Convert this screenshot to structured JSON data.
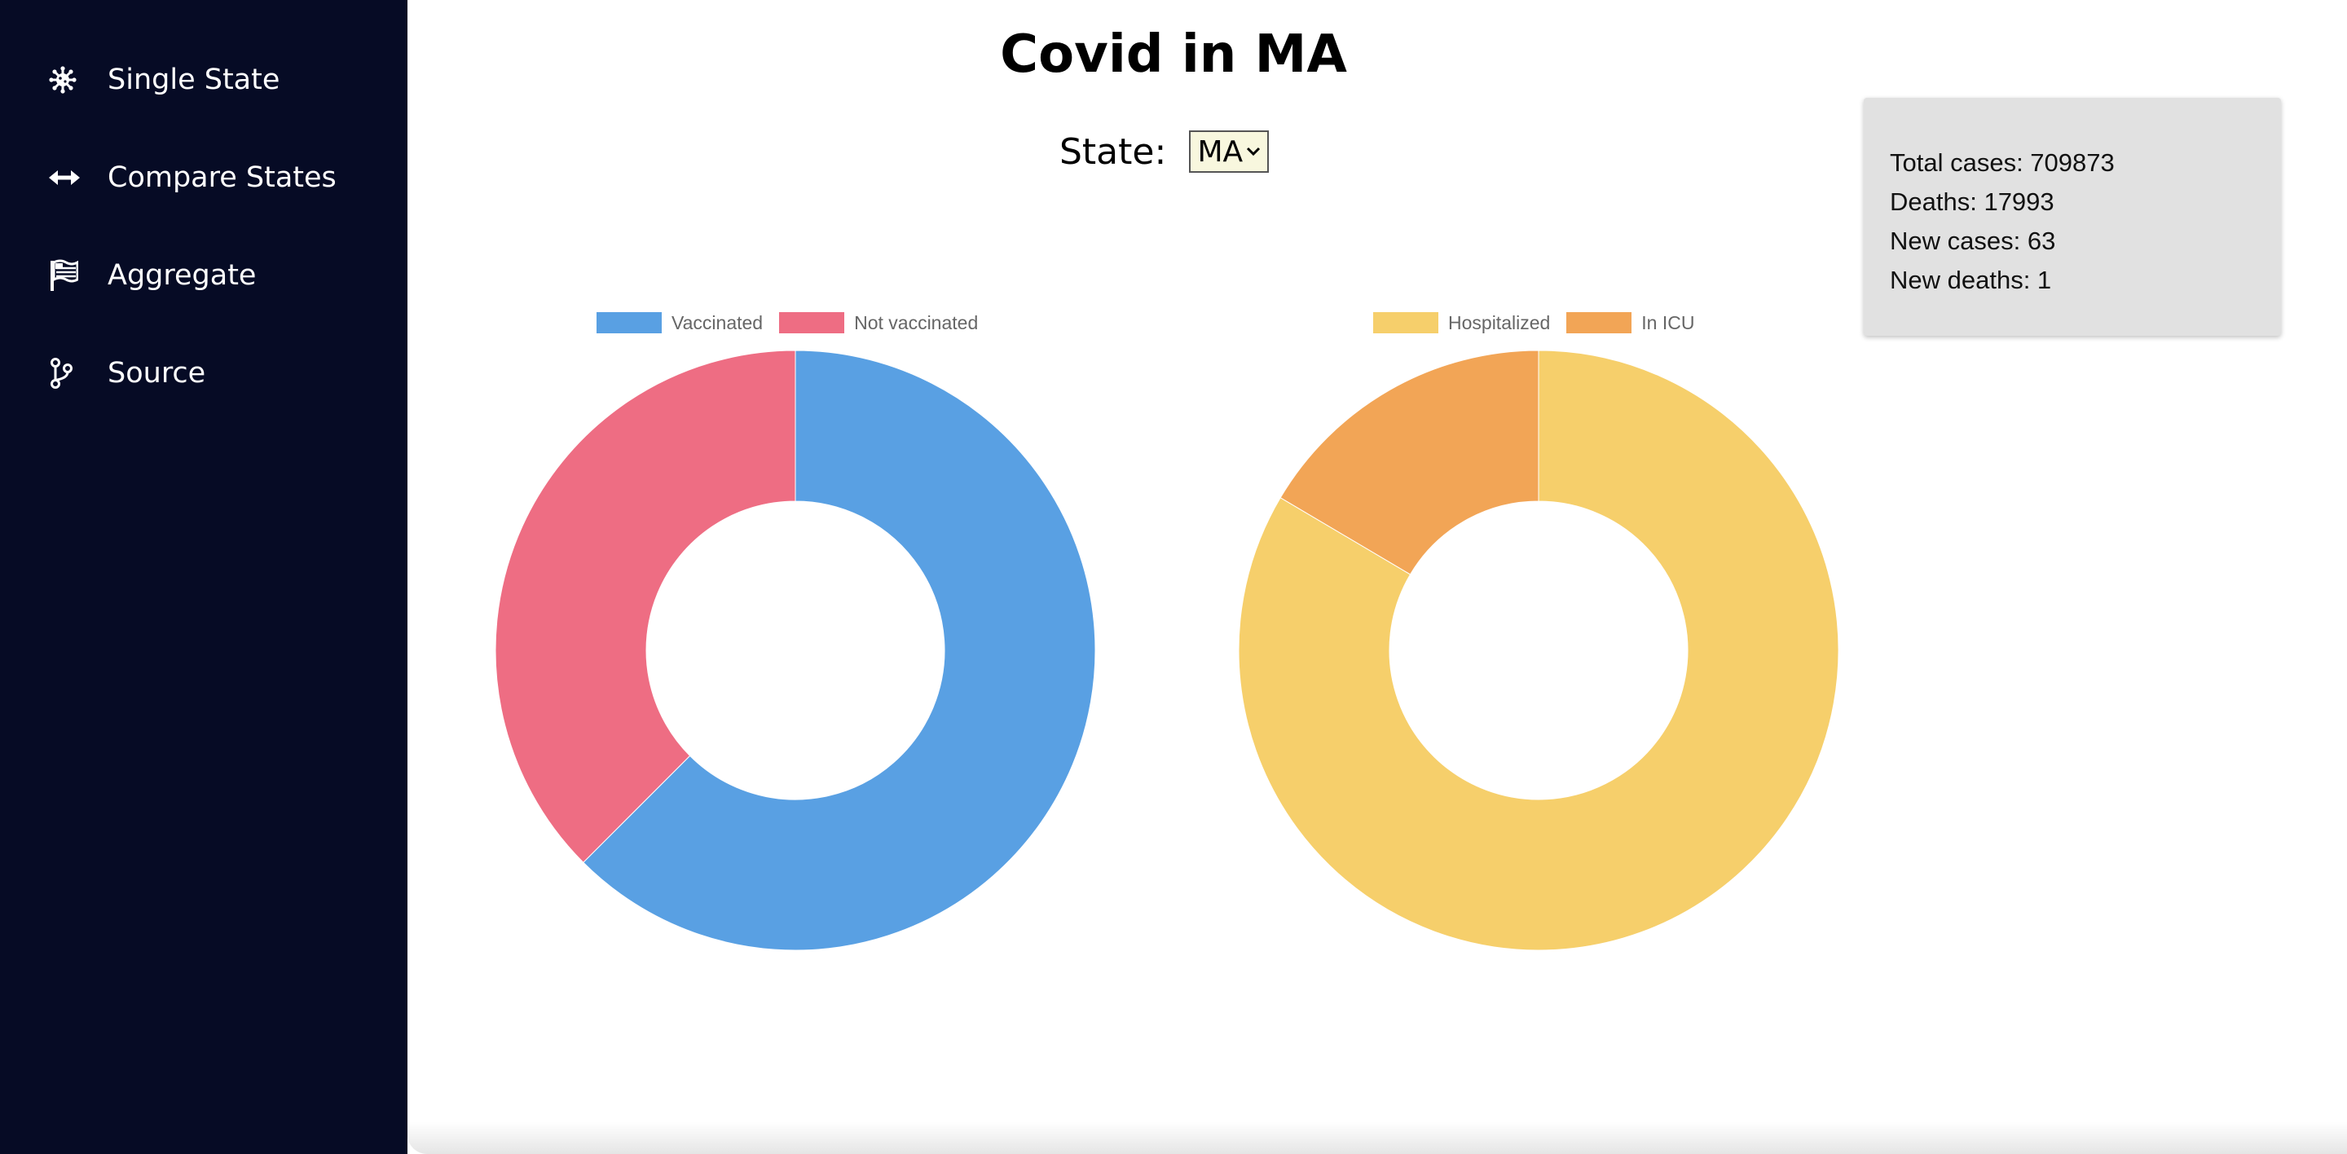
{
  "sidebar": {
    "items": [
      {
        "label": "Single State",
        "icon": "virus-icon"
      },
      {
        "label": "Compare States",
        "icon": "arrows-left-right-icon"
      },
      {
        "label": "Aggregate",
        "icon": "flag-icon"
      },
      {
        "label": "Source",
        "icon": "code-branch-icon"
      }
    ]
  },
  "header": {
    "title": "Covid in MA",
    "state_label": "State:",
    "state_selected": "MA"
  },
  "stats": {
    "total_cases": "Total cases: 709873",
    "deaths": "Deaths: 17993",
    "new_cases": "New cases: 63",
    "new_deaths": "New deaths: 1"
  },
  "colors": {
    "sidebar_bg": "#060b25",
    "vaccinated": "#59a0e3",
    "not_vaccinated": "#ee6d83",
    "hospitalized": "#f6cf6b",
    "in_icu": "#f2a556",
    "stats_bg": "#e1e1e1"
  },
  "chart_data": [
    {
      "type": "pie",
      "variant": "doughnut",
      "legend_position": "top",
      "labels": [
        "Vaccinated",
        "Not vaccinated"
      ],
      "values": [
        62.5,
        37.5
      ],
      "colors": [
        "#59a0e3",
        "#ee6d83"
      ]
    },
    {
      "type": "pie",
      "variant": "doughnut",
      "legend_position": "top",
      "labels": [
        "Hospitalized",
        "In ICU"
      ],
      "values": [
        83.5,
        16.5
      ],
      "colors": [
        "#f6cf6b",
        "#f2a556"
      ]
    }
  ]
}
